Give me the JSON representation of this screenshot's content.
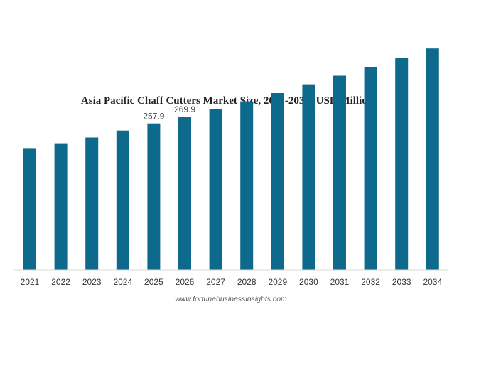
{
  "chart_data": {
    "type": "bar",
    "title": "Asia Pacific Chaff Cutters Market Size, 2021-2034 (USD Million)",
    "categories": [
      "2021",
      "2022",
      "2023",
      "2024",
      "2025",
      "2026",
      "2027",
      "2028",
      "2029",
      "2030",
      "2031",
      "2032",
      "2033",
      "2034"
    ],
    "series": [
      {
        "values": [
          213.3,
          223.0,
          233.1,
          245.4,
          257.9,
          269.9,
          283.5,
          296.8,
          311.3,
          326.8,
          341.9,
          357.5,
          373.4,
          389.7
        ]
      }
    ],
    "data_labels": [
      {
        "category": "2025",
        "text": "257.9"
      },
      {
        "category": "2026",
        "text": "269.9"
      }
    ],
    "ylim": [
      0,
      400
    ],
    "xlabel": "",
    "ylabel": "",
    "grid": false,
    "colors": {
      "bar": "#0e6a8c",
      "axis": "#d9d9d9"
    }
  },
  "source": "www.fortunebusinessinsights.com"
}
